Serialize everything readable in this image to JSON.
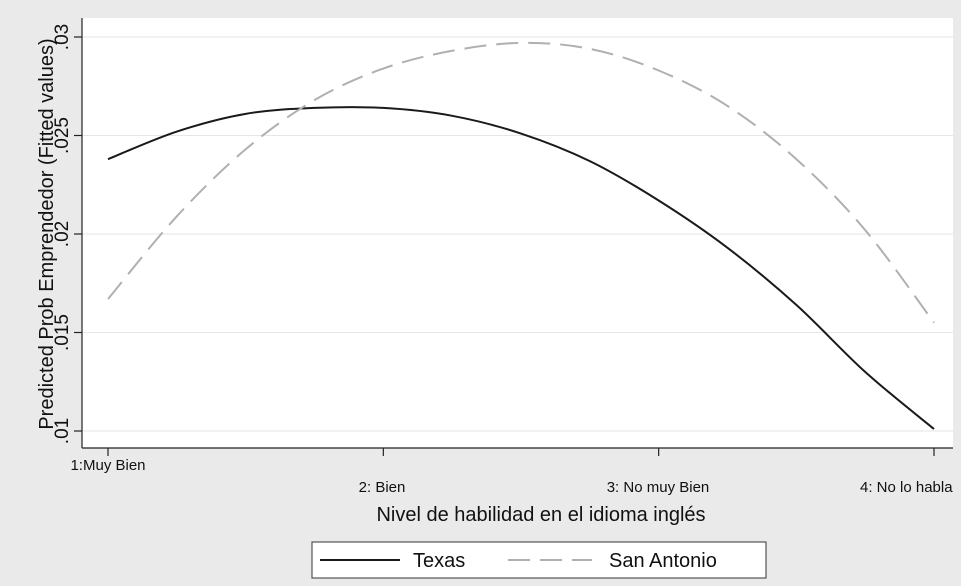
{
  "chart_data": {
    "type": "line",
    "title": "",
    "xlabel": "Nivel de habilidad en el idioma inglés",
    "ylabel": "Predicted Prob Emprendedor (Fitted values)",
    "x_categories": [
      "1:Muy Bien",
      "2: Bien",
      "3: No muy Bien",
      "4: No lo habla"
    ],
    "xlim": [
      1,
      4
    ],
    "ylim": [
      0.01,
      0.03
    ],
    "yticks": [
      0.01,
      0.015,
      0.02,
      0.025,
      0.03
    ],
    "ytick_labels": [
      ".01",
      ".015",
      ".02",
      ".025",
      ".03"
    ],
    "grid": true,
    "legend_position": "bottom",
    "series": [
      {
        "name": "Texas",
        "style": "solid",
        "color": "#1a1a1a",
        "x": [
          1,
          1.25,
          1.5,
          1.75,
          2,
          2.25,
          2.5,
          2.75,
          3,
          3.25,
          3.5,
          3.75,
          4
        ],
        "y": [
          0.0238,
          0.0252,
          0.0261,
          0.0264,
          0.0264,
          0.026,
          0.0251,
          0.0237,
          0.0217,
          0.0193,
          0.0164,
          0.013,
          0.0101
        ]
      },
      {
        "name": "San Antonio",
        "style": "dashed",
        "color": "#b0b0b0",
        "x": [
          1,
          1.25,
          1.5,
          1.75,
          2,
          2.25,
          2.5,
          2.75,
          3,
          3.25,
          3.5,
          3.75,
          4
        ],
        "y": [
          0.0167,
          0.0209,
          0.0243,
          0.0268,
          0.0284,
          0.0293,
          0.0297,
          0.0294,
          0.0283,
          0.0265,
          0.0238,
          0.0202,
          0.0155
        ]
      }
    ]
  }
}
